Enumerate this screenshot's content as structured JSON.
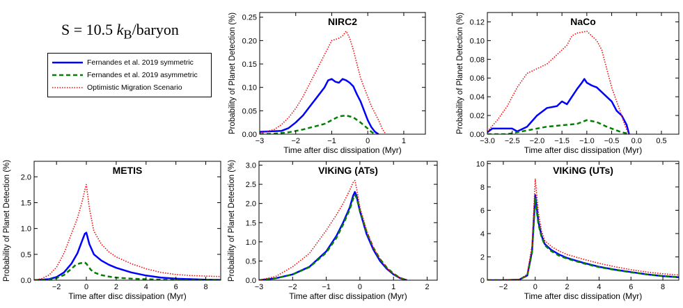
{
  "page_title": {
    "prefix": "S = 10.5 ",
    "kb": "k",
    "sub": "B",
    "suffix": "/baryon"
  },
  "legend": {
    "entries": [
      {
        "label": "Fernandes et al. 2019 symmetric",
        "color": "#0000ff",
        "style": "solid"
      },
      {
        "label": "Fernandes et al. 2019 asymmetric",
        "color": "#008000",
        "style": "dashed"
      },
      {
        "label": "Optimistic Migration Scenario",
        "color": "#ff0000",
        "style": "dotted"
      }
    ]
  },
  "chart_data": [
    {
      "type": "line",
      "title": "NIRC2",
      "xlabel": "Time after disc dissipation (Myr)",
      "ylabel": "Probability of Planet Detection (%)",
      "xlim": [
        -3,
        1.6
      ],
      "ylim": [
        0,
        0.26
      ],
      "xticks": [
        -3,
        -2,
        -1,
        0,
        1
      ],
      "yticks": [
        0.0,
        0.05,
        0.1,
        0.15,
        0.2,
        0.25
      ],
      "ytick_labels": [
        "0.00",
        "0.05",
        "0.10",
        "0.15",
        "0.20",
        "0.25"
      ],
      "series": [
        {
          "name": "Fernandes et al. 2019 symmetric",
          "x": [
            -3.0,
            -2.4,
            -2.2,
            -2.0,
            -1.8,
            -1.6,
            -1.4,
            -1.2,
            -1.1,
            -1.0,
            -0.9,
            -0.8,
            -0.7,
            -0.6,
            -0.5,
            -0.4,
            -0.3,
            -0.2,
            -0.1,
            0.0,
            0.1,
            0.2,
            0.3
          ],
          "y": [
            0.005,
            0.007,
            0.013,
            0.025,
            0.04,
            0.06,
            0.08,
            0.1,
            0.115,
            0.118,
            0.112,
            0.11,
            0.118,
            0.115,
            0.11,
            0.102,
            0.085,
            0.07,
            0.05,
            0.03,
            0.015,
            0.005,
            0.0
          ]
        },
        {
          "name": "Fernandes et al. 2019 asymmetric",
          "x": [
            -3.0,
            -2.6,
            -2.2,
            -2.0,
            -1.8,
            -1.6,
            -1.4,
            -1.2,
            -1.0,
            -0.8,
            -0.6,
            -0.4,
            -0.2,
            0.0,
            0.1,
            0.2
          ],
          "y": [
            0.0,
            0.001,
            0.004,
            0.007,
            0.01,
            0.014,
            0.018,
            0.022,
            0.03,
            0.038,
            0.04,
            0.036,
            0.025,
            0.012,
            0.005,
            0.0
          ]
        },
        {
          "name": "Optimistic Migration Scenario",
          "x": [
            -3.0,
            -2.6,
            -2.4,
            -2.2,
            -2.0,
            -1.8,
            -1.6,
            -1.4,
            -1.2,
            -1.0,
            -0.8,
            -0.7,
            -0.6,
            -0.5,
            -0.4,
            -0.3,
            -0.2,
            -0.1,
            0.0,
            0.1,
            0.2,
            0.3,
            0.4,
            0.5
          ],
          "y": [
            0.002,
            0.01,
            0.02,
            0.035,
            0.055,
            0.08,
            0.11,
            0.14,
            0.17,
            0.2,
            0.205,
            0.21,
            0.22,
            0.205,
            0.18,
            0.15,
            0.12,
            0.1,
            0.08,
            0.06,
            0.045,
            0.03,
            0.012,
            0.0
          ]
        }
      ]
    },
    {
      "type": "line",
      "title": "NaCo",
      "xlabel": "Time after disc dissipation (Myr)",
      "ylabel": "Probability of Planet Detection (%)",
      "xlim": [
        -3.0,
        0.85
      ],
      "ylim": [
        0,
        0.13
      ],
      "xticks": [
        -3.0,
        -2.5,
        -2.0,
        -1.5,
        -1.0,
        -0.5,
        0.0,
        0.5
      ],
      "xtick_labels": [
        "−3.0",
        "−2.5",
        "−2.0",
        "−1.5",
        "−1.0",
        "−0.5",
        "0.0",
        "0.5"
      ],
      "yticks": [
        0.0,
        0.02,
        0.04,
        0.06,
        0.08,
        0.1,
        0.12
      ],
      "ytick_labels": [
        "0.00",
        "0.02",
        "0.04",
        "0.06",
        "0.08",
        "0.10",
        "0.12"
      ],
      "series": [
        {
          "name": "Fernandes et al. 2019 symmetric",
          "x": [
            -3.0,
            -2.9,
            -2.5,
            -2.4,
            -2.2,
            -2.0,
            -1.8,
            -1.6,
            -1.5,
            -1.4,
            -1.3,
            -1.2,
            -1.1,
            -1.05,
            -1.0,
            -0.9,
            -0.8,
            -0.7,
            -0.6,
            -0.5,
            -0.4,
            -0.3,
            -0.2,
            -0.15
          ],
          "y": [
            0.002,
            0.006,
            0.006,
            0.003,
            0.008,
            0.02,
            0.028,
            0.03,
            0.035,
            0.032,
            0.04,
            0.048,
            0.055,
            0.059,
            0.055,
            0.052,
            0.05,
            0.045,
            0.04,
            0.035,
            0.025,
            0.02,
            0.01,
            0.0
          ]
        },
        {
          "name": "Fernandes et al. 2019 asymmetric",
          "x": [
            -3.0,
            -2.6,
            -2.4,
            -2.2,
            -2.0,
            -1.8,
            -1.6,
            -1.4,
            -1.2,
            -1.0,
            -0.8,
            -0.6,
            -0.5,
            -0.4,
            -0.3,
            -0.2,
            -0.15
          ],
          "y": [
            0.0,
            0.0,
            0.002,
            0.004,
            0.006,
            0.008,
            0.009,
            0.01,
            0.011,
            0.015,
            0.013,
            0.008,
            0.006,
            0.004,
            0.002,
            0.001,
            0.0
          ]
        },
        {
          "name": "Optimistic Migration Scenario",
          "x": [
            -3.0,
            -2.8,
            -2.6,
            -2.4,
            -2.2,
            -2.0,
            -1.8,
            -1.6,
            -1.4,
            -1.3,
            -1.2,
            -1.1,
            -1.0,
            -0.9,
            -0.8,
            -0.7,
            -0.6,
            -0.5,
            -0.4,
            -0.3,
            -0.25,
            -0.2,
            -0.15
          ],
          "y": [
            0.003,
            0.015,
            0.03,
            0.05,
            0.065,
            0.07,
            0.075,
            0.085,
            0.095,
            0.105,
            0.108,
            0.109,
            0.11,
            0.105,
            0.1,
            0.09,
            0.07,
            0.05,
            0.035,
            0.02,
            0.012,
            0.005,
            0.0
          ]
        }
      ]
    },
    {
      "type": "line",
      "title": "METIS",
      "xlabel": "Time after disc dissipation (Myr)",
      "ylabel": "Probability of Planet Detection (%)",
      "xlim": [
        -3.5,
        9
      ],
      "ylim": [
        0,
        2.3
      ],
      "xticks": [
        -2,
        0,
        2,
        4,
        6,
        8
      ],
      "yticks": [
        0.0,
        0.5,
        1.0,
        1.5,
        2.0
      ],
      "ytick_labels": [
        "0.0",
        "0.5",
        "1.0",
        "1.5",
        "2.0"
      ],
      "series": [
        {
          "name": "Fernandes et al. 2019 symmetric",
          "x": [
            -3.5,
            -2.5,
            -2.0,
            -1.5,
            -1.0,
            -0.6,
            -0.3,
            -0.1,
            0.0,
            0.2,
            0.5,
            1.0,
            1.5,
            2.0,
            3.0,
            4.0,
            5.0,
            6.0,
            7.0,
            8.0,
            9.0
          ],
          "y": [
            0.0,
            0.02,
            0.06,
            0.15,
            0.32,
            0.52,
            0.75,
            0.9,
            0.92,
            0.7,
            0.5,
            0.38,
            0.3,
            0.24,
            0.15,
            0.09,
            0.05,
            0.03,
            0.02,
            0.01,
            0.005
          ]
        },
        {
          "name": "Fernandes et al. 2019 asymmetric",
          "x": [
            -3.5,
            -2.5,
            -2.0,
            -1.5,
            -1.0,
            -0.7,
            -0.4,
            -0.1,
            0.0,
            0.3,
            0.6,
            1.0,
            1.5,
            2.0,
            3.0,
            4.0,
            5.0,
            6.0,
            9.0
          ],
          "y": [
            0.0,
            0.01,
            0.04,
            0.1,
            0.22,
            0.3,
            0.33,
            0.34,
            0.32,
            0.2,
            0.14,
            0.1,
            0.07,
            0.05,
            0.03,
            0.02,
            0.01,
            0.005,
            0.0
          ]
        },
        {
          "name": "Optimistic Migration Scenario",
          "x": [
            -3.5,
            -3.0,
            -2.5,
            -2.0,
            -1.5,
            -1.0,
            -0.6,
            -0.3,
            -0.1,
            0.0,
            0.2,
            0.5,
            1.0,
            1.5,
            2.0,
            3.0,
            4.0,
            5.0,
            6.0,
            7.0,
            8.0,
            9.0
          ],
          "y": [
            0.0,
            0.03,
            0.1,
            0.25,
            0.52,
            0.9,
            1.2,
            1.5,
            1.75,
            1.85,
            1.4,
            0.95,
            0.7,
            0.55,
            0.45,
            0.32,
            0.22,
            0.15,
            0.11,
            0.09,
            0.08,
            0.07
          ]
        }
      ]
    },
    {
      "type": "line",
      "title": "VIKiNG (ATs)",
      "xlabel": "Time after disc dissipation (Myr)",
      "ylabel": "Probability of Planet Detection (%)",
      "xlim": [
        -3,
        2.3
      ],
      "ylim": [
        0,
        3.1
      ],
      "xticks": [
        -3,
        -2,
        -1,
        0,
        1,
        2
      ],
      "yticks": [
        0.0,
        0.5,
        1.0,
        1.5,
        2.0,
        2.5,
        3.0
      ],
      "ytick_labels": [
        "0.0",
        "0.5",
        "1.0",
        "1.5",
        "2.0",
        "2.5",
        "3.0"
      ],
      "series": [
        {
          "name": "Fernandes et al. 2019 symmetric",
          "x": [
            -3.0,
            -2.5,
            -2.0,
            -1.5,
            -1.0,
            -0.7,
            -0.5,
            -0.3,
            -0.2,
            -0.15,
            -0.1,
            0.0,
            0.2,
            0.4,
            0.6,
            0.8,
            1.0,
            1.2,
            1.4
          ],
          "y": [
            0.0,
            0.05,
            0.15,
            0.35,
            0.75,
            1.15,
            1.5,
            1.9,
            2.2,
            2.3,
            2.2,
            1.8,
            1.2,
            0.8,
            0.5,
            0.3,
            0.15,
            0.05,
            0.0
          ]
        },
        {
          "name": "Fernandes et al. 2019 asymmetric",
          "x": [
            -3.0,
            -2.5,
            -2.0,
            -1.5,
            -1.0,
            -0.7,
            -0.5,
            -0.3,
            -0.2,
            -0.15,
            -0.1,
            0.0,
            0.2,
            0.4,
            0.6,
            0.8,
            1.0,
            1.2,
            1.4
          ],
          "y": [
            0.0,
            0.05,
            0.15,
            0.34,
            0.72,
            1.1,
            1.45,
            1.85,
            2.12,
            2.22,
            2.15,
            1.82,
            1.25,
            0.85,
            0.55,
            0.33,
            0.17,
            0.06,
            0.0
          ]
        },
        {
          "name": "Optimistic Migration Scenario",
          "x": [
            -3.0,
            -2.5,
            -2.0,
            -1.5,
            -1.0,
            -0.7,
            -0.5,
            -0.3,
            -0.2,
            -0.15,
            -0.1,
            0.0,
            0.2,
            0.4,
            0.6,
            0.8,
            1.0,
            1.2,
            1.4
          ],
          "y": [
            0.0,
            0.1,
            0.35,
            0.7,
            1.3,
            1.7,
            2.0,
            2.35,
            2.55,
            2.6,
            2.4,
            1.9,
            1.3,
            0.85,
            0.55,
            0.32,
            0.16,
            0.05,
            0.0
          ]
        }
      ]
    },
    {
      "type": "line",
      "title": "VIKiNG (UTs)",
      "xlabel": "Time after disc dissipation (Myr)",
      "ylabel": "",
      "xlim": [
        -3,
        9
      ],
      "ylim": [
        0,
        10.2
      ],
      "xticks": [
        -2,
        0,
        2,
        4,
        6,
        8
      ],
      "yticks": [
        0,
        2,
        4,
        6,
        8,
        10
      ],
      "series": [
        {
          "name": "Fernandes et al. 2019 symmetric",
          "x": [
            -3.0,
            -2.0,
            -1.0,
            -0.5,
            -0.2,
            0.0,
            0.2,
            0.4,
            0.6,
            1.0,
            1.5,
            2.0,
            3.0,
            4.0,
            5.0,
            6.0,
            7.0,
            8.0,
            9.0
          ],
          "y": [
            0.0,
            0.0,
            0.05,
            0.4,
            2.5,
            7.3,
            5.0,
            3.8,
            3.1,
            2.6,
            2.2,
            1.9,
            1.5,
            1.15,
            0.9,
            0.7,
            0.5,
            0.35,
            0.25
          ]
        },
        {
          "name": "Fernandes et al. 2019 asymmetric",
          "x": [
            -3.0,
            -2.0,
            -1.0,
            -0.5,
            -0.2,
            0.0,
            0.2,
            0.4,
            0.6,
            1.0,
            1.5,
            2.0,
            3.0,
            4.0,
            5.0,
            6.0,
            7.0,
            8.0,
            9.0
          ],
          "y": [
            0.0,
            0.0,
            0.05,
            0.4,
            2.4,
            7.0,
            4.8,
            3.7,
            3.0,
            2.5,
            2.1,
            1.85,
            1.45,
            1.12,
            0.88,
            0.68,
            0.5,
            0.36,
            0.27
          ]
        },
        {
          "name": "Optimistic Migration Scenario",
          "x": [
            -3.0,
            -2.0,
            -1.0,
            -0.5,
            -0.2,
            0.0,
            0.2,
            0.4,
            0.6,
            1.0,
            1.5,
            2.0,
            3.0,
            4.0,
            5.0,
            6.0,
            7.0,
            8.0,
            9.0
          ],
          "y": [
            0.0,
            0.0,
            0.08,
            0.5,
            3.0,
            8.7,
            5.8,
            4.2,
            3.4,
            2.9,
            2.5,
            2.2,
            1.8,
            1.45,
            1.15,
            0.9,
            0.7,
            0.55,
            0.45
          ]
        }
      ]
    }
  ]
}
